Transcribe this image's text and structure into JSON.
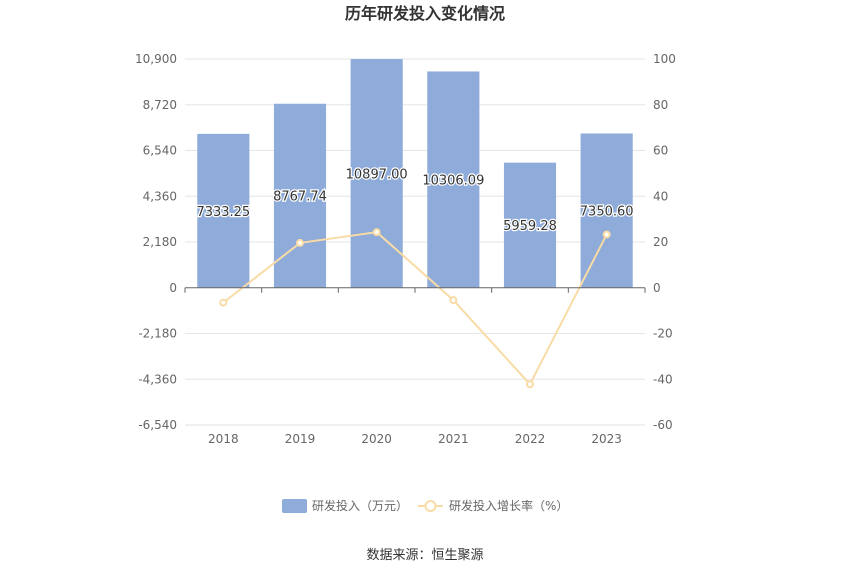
{
  "chart_data": {
    "type": "bar",
    "title": "历年研发投入变化情况",
    "categories": [
      "2018",
      "2019",
      "2020",
      "2021",
      "2022",
      "2023"
    ],
    "series": [
      {
        "name": "研发投入（万元）",
        "type": "bar",
        "axis": "left",
        "values": [
          7333.25,
          8767.74,
          10897.0,
          10306.09,
          5959.28,
          7350.6
        ],
        "labels": [
          "7333.25",
          "8767.74",
          "10897.00",
          "10306.09",
          "5959.28",
          "7350.60"
        ],
        "color": "#8eabd9"
      },
      {
        "name": "研发投入增长率（%）",
        "type": "line",
        "axis": "right",
        "values": [
          -6.5,
          19.6,
          24.3,
          -5.4,
          -42.2,
          23.3
        ],
        "color": "#f8dba5"
      }
    ],
    "left_axis": {
      "min": -6540,
      "max": 10900,
      "ticks": [
        10900,
        8720,
        6540,
        4360,
        2180,
        0,
        -2180,
        -4360,
        -6540
      ],
      "tick_labels": [
        "10,900",
        "8,720",
        "6,540",
        "4,360",
        "2,180",
        "0",
        "-2,180",
        "-4,360",
        "-6,540"
      ]
    },
    "right_axis": {
      "min": -60,
      "max": 100,
      "ticks": [
        100,
        80,
        60,
        40,
        20,
        0,
        -20,
        -40,
        -60
      ],
      "tick_labels": [
        "100",
        "80",
        "60",
        "40",
        "20",
        "0",
        "-20",
        "-40",
        "-60"
      ]
    },
    "grid": true,
    "legend_position": "bottom",
    "source_text": "数据来源：恒生聚源"
  }
}
